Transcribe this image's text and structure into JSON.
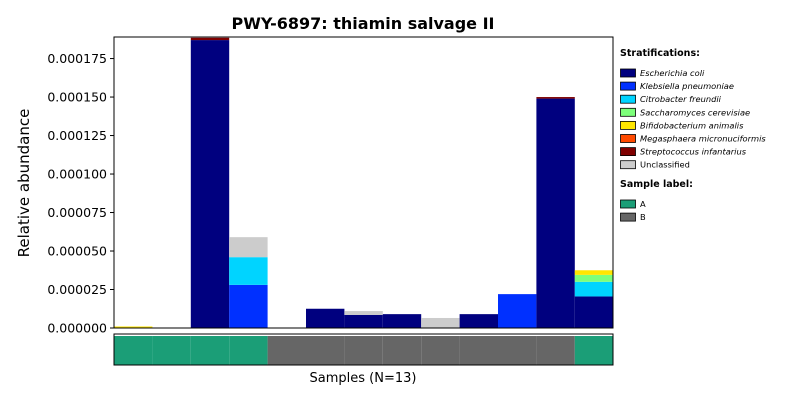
{
  "chart_data": {
    "type": "bar",
    "stacked": true,
    "title": "PWY-6897: thiamin salvage II",
    "ylabel": "Relative abundance",
    "xlabel": "Samples (N=13)",
    "ylim": [
      0,
      0.000189
    ],
    "yticks": [
      "0.000000",
      "0.000025",
      "0.000050",
      "0.000075",
      "0.000100",
      "0.000125",
      "0.000150",
      "0.000175"
    ],
    "ytick_values": [
      0,
      2.5e-05,
      5e-05,
      7.5e-05,
      0.0001,
      0.000125,
      0.00015,
      0.000175
    ],
    "grid": false,
    "legend_position": "right",
    "legend_title": "Stratifications:",
    "sample_count": 13,
    "series": [
      {
        "name": "Escherichia coli",
        "color": "#00007f",
        "values": [
          0,
          0,
          0.000187,
          0,
          0,
          1.25e-05,
          8.5e-06,
          9e-06,
          0,
          9e-06,
          0,
          0.000149,
          2.05e-05
        ]
      },
      {
        "name": "Klebsiella pneumoniae",
        "color": "#0030ff",
        "values": [
          0,
          0,
          0,
          2.8e-05,
          0,
          0,
          0,
          0,
          0,
          0,
          2.2e-05,
          0,
          0
        ]
      },
      {
        "name": "Citrobacter freundii",
        "color": "#00d4ff",
        "values": [
          0,
          0,
          0,
          1.8e-05,
          0,
          0,
          0,
          0,
          0,
          0,
          0,
          0,
          9.5e-06
        ]
      },
      {
        "name": "Saccharomyces cerevisiae",
        "color": "#7dff7a",
        "values": [
          0,
          0,
          0,
          0,
          0,
          0,
          0,
          0,
          0,
          0,
          0,
          0,
          4.5e-06
        ]
      },
      {
        "name": "Bifidobacterium animalis",
        "color": "#ffe600",
        "values": [
          1e-06,
          0,
          0,
          0,
          0,
          0,
          0,
          0,
          0,
          0,
          0,
          0,
          3e-06
        ]
      },
      {
        "name": "Megasphaera micronuciformis",
        "color": "#ff4a00",
        "values": [
          0,
          0,
          0,
          0,
          0,
          0,
          0,
          0,
          0,
          0,
          0,
          0,
          0
        ]
      },
      {
        "name": "Streptococcus infantarius",
        "color": "#7f0000",
        "values": [
          0,
          0,
          1.5e-06,
          0,
          0,
          0,
          0,
          0,
          0,
          0,
          0,
          1e-06,
          0
        ]
      },
      {
        "name": "Unclassified",
        "color": "#cccccc",
        "values": [
          0,
          0,
          0,
          1.3e-05,
          0,
          0,
          2.5e-06,
          0,
          6.5e-06,
          0,
          0,
          0,
          0
        ]
      }
    ],
    "sample_labels": [
      "A",
      "A",
      "A",
      "A",
      "B",
      "B",
      "B",
      "B",
      "B",
      "B",
      "B",
      "B",
      "A"
    ],
    "sample_label_legend": {
      "title": "Sample label:",
      "entries": [
        {
          "name": "A",
          "color": "#1b9e77"
        },
        {
          "name": "B",
          "color": "#666666"
        }
      ]
    }
  }
}
